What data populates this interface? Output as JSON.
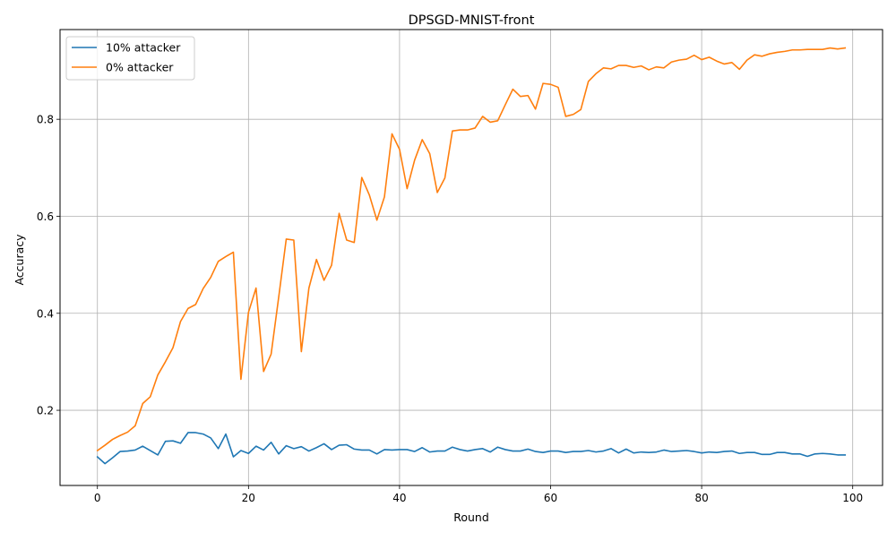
{
  "chart_data": {
    "type": "line",
    "title": "DPSGD-MNIST-front",
    "xlabel": "Round",
    "ylabel": "Accuracy",
    "xlim": [
      -4.95,
      103.95
    ],
    "ylim": [
      0.045,
      0.985
    ],
    "xticks": [
      0,
      20,
      40,
      60,
      80,
      100
    ],
    "yticks": [
      0.2,
      0.4,
      0.6,
      0.8
    ],
    "grid": true,
    "legend_position": "upper-left",
    "series": [
      {
        "name": "10% attacker",
        "color": "#1f77b4",
        "x": [
          0,
          1,
          2,
          3,
          4,
          5,
          6,
          7,
          8,
          9,
          10,
          11,
          12,
          13,
          14,
          15,
          16,
          17,
          18,
          19,
          20,
          21,
          22,
          23,
          24,
          25,
          26,
          27,
          28,
          29,
          30,
          31,
          32,
          33,
          34,
          35,
          36,
          37,
          38,
          39,
          40,
          41,
          42,
          43,
          44,
          45,
          46,
          47,
          48,
          49,
          50,
          51,
          52,
          53,
          54,
          55,
          56,
          57,
          58,
          59,
          60,
          61,
          62,
          63,
          64,
          65,
          66,
          67,
          68,
          69,
          70,
          71,
          72,
          73,
          74,
          75,
          76,
          77,
          78,
          79,
          80,
          81,
          82,
          83,
          84,
          85,
          86,
          87,
          88,
          89,
          90,
          91,
          92,
          93,
          94,
          95,
          96,
          97,
          98,
          99
        ],
        "values": [
          0.104,
          0.09,
          0.102,
          0.115,
          0.116,
          0.118,
          0.126,
          0.117,
          0.108,
          0.136,
          0.137,
          0.132,
          0.154,
          0.154,
          0.151,
          0.143,
          0.121,
          0.151,
          0.104,
          0.117,
          0.111,
          0.126,
          0.118,
          0.134,
          0.11,
          0.127,
          0.121,
          0.125,
          0.116,
          0.123,
          0.131,
          0.119,
          0.128,
          0.129,
          0.12,
          0.118,
          0.118,
          0.11,
          0.119,
          0.118,
          0.119,
          0.119,
          0.115,
          0.123,
          0.114,
          0.116,
          0.116,
          0.124,
          0.119,
          0.116,
          0.119,
          0.121,
          0.114,
          0.124,
          0.119,
          0.116,
          0.116,
          0.12,
          0.115,
          0.113,
          0.116,
          0.116,
          0.113,
          0.115,
          0.115,
          0.117,
          0.114,
          0.116,
          0.121,
          0.112,
          0.12,
          0.112,
          0.114,
          0.113,
          0.114,
          0.118,
          0.115,
          0.116,
          0.117,
          0.115,
          0.112,
          0.114,
          0.113,
          0.115,
          0.116,
          0.111,
          0.113,
          0.113,
          0.109,
          0.109,
          0.113,
          0.113,
          0.11,
          0.11,
          0.105,
          0.11,
          0.111,
          0.11,
          0.108,
          0.108
        ]
      },
      {
        "name": "0% attacker",
        "color": "#ff7f0e",
        "x": [
          0,
          1,
          2,
          3,
          4,
          5,
          6,
          7,
          8,
          9,
          10,
          11,
          12,
          13,
          14,
          15,
          16,
          17,
          18,
          19,
          20,
          21,
          22,
          23,
          24,
          25,
          26,
          27,
          28,
          29,
          30,
          31,
          32,
          33,
          34,
          35,
          36,
          37,
          38,
          39,
          40,
          41,
          42,
          43,
          44,
          45,
          46,
          47,
          48,
          49,
          50,
          51,
          52,
          53,
          54,
          55,
          56,
          57,
          58,
          59,
          60,
          61,
          62,
          63,
          64,
          65,
          66,
          67,
          68,
          69,
          70,
          71,
          72,
          73,
          74,
          75,
          76,
          77,
          78,
          79,
          80,
          81,
          82,
          83,
          84,
          85,
          86,
          87,
          88,
          89,
          90,
          91,
          92,
          93,
          94,
          95,
          96,
          97,
          98,
          99
        ],
        "values": [
          0.117,
          0.128,
          0.14,
          0.148,
          0.155,
          0.168,
          0.214,
          0.228,
          0.273,
          0.3,
          0.329,
          0.383,
          0.41,
          0.418,
          0.451,
          0.474,
          0.507,
          0.517,
          0.526,
          0.264,
          0.402,
          0.452,
          0.28,
          0.316,
          0.433,
          0.553,
          0.551,
          0.321,
          0.452,
          0.511,
          0.468,
          0.499,
          0.606,
          0.551,
          0.546,
          0.68,
          0.644,
          0.592,
          0.64,
          0.77,
          0.738,
          0.657,
          0.716,
          0.758,
          0.729,
          0.649,
          0.679,
          0.776,
          0.778,
          0.778,
          0.782,
          0.806,
          0.794,
          0.797,
          0.83,
          0.862,
          0.847,
          0.849,
          0.821,
          0.874,
          0.872,
          0.866,
          0.806,
          0.81,
          0.82,
          0.878,
          0.894,
          0.906,
          0.904,
          0.911,
          0.911,
          0.907,
          0.91,
          0.902,
          0.908,
          0.906,
          0.918,
          0.922,
          0.924,
          0.932,
          0.923,
          0.928,
          0.92,
          0.914,
          0.917,
          0.903,
          0.922,
          0.933,
          0.93,
          0.935,
          0.938,
          0.94,
          0.943,
          0.943,
          0.944,
          0.944,
          0.944,
          0.947,
          0.945,
          0.947
        ]
      }
    ]
  }
}
